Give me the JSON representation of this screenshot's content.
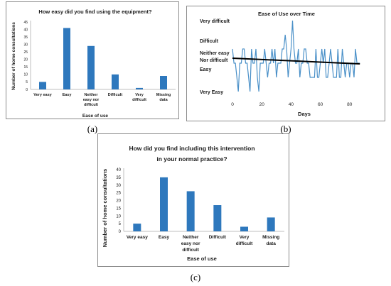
{
  "captions": {
    "a": "(a)",
    "b": "(b)",
    "c": "(c)"
  },
  "colors": {
    "bar": "#2e78bd",
    "series_line": "#4a90c8",
    "trend": "#000000",
    "axis": "#bfbfbf"
  },
  "chart_data": [
    {
      "type": "bar",
      "title": "How easy did you find using the equipment?",
      "xlabel": "Ease of use",
      "ylabel": "Number of home consultations",
      "categories": [
        "Very easy",
        "Easy",
        "Neither easy nor difficult",
        "Difficult",
        "Very difficult",
        "Missing data"
      ],
      "values": [
        5,
        41,
        29,
        10,
        1,
        9
      ],
      "ylim": [
        0,
        45
      ],
      "yticks": [
        "0",
        "5",
        "10",
        "15",
        "20",
        "25",
        "30",
        "35",
        "40",
        "45"
      ],
      "grid": false,
      "legend": "none"
    },
    {
      "type": "line",
      "title": "Ease of Use over Time",
      "xlabel": "Days",
      "ylabel": "",
      "xlim": [
        0,
        100
      ],
      "xticks": [
        "0",
        "20",
        "40",
        "60",
        "80"
      ],
      "ylim": [
        0,
        5
      ],
      "ytick_labels": [
        "Very Easy",
        "Easy",
        "Neither easy Nor difficult",
        "Difficult",
        "Very difficult"
      ],
      "series": [
        {
          "x": [
            0,
            1,
            2,
            3,
            4,
            5,
            6,
            7,
            8,
            9,
            10,
            11,
            12,
            13,
            14,
            15,
            16,
            17,
            18,
            19,
            20,
            21,
            22,
            23,
            24,
            25,
            26,
            27,
            28,
            29,
            30,
            31,
            32,
            33,
            34,
            35,
            36,
            37,
            38,
            39,
            40,
            41,
            42,
            43,
            44,
            45,
            46,
            47,
            48,
            49,
            50,
            51,
            52,
            53,
            54,
            55,
            56,
            57,
            58,
            59,
            60,
            61,
            62,
            63,
            64,
            65,
            66,
            67,
            68,
            69,
            70,
            71,
            72,
            73,
            74,
            75,
            76,
            77,
            78,
            79,
            80,
            81,
            82,
            83,
            84,
            85,
            86,
            87
          ],
          "y": [
            3,
            2,
            2,
            1,
            0,
            2,
            2,
            3,
            3,
            2,
            2,
            1,
            0,
            3,
            2,
            2,
            3,
            1,
            0,
            2,
            2,
            2,
            3,
            2,
            1,
            2,
            2,
            3,
            2,
            3,
            1,
            2,
            2,
            2,
            3,
            3,
            4,
            3,
            1,
            2,
            3,
            5,
            3,
            2,
            2,
            3,
            1,
            2,
            2,
            3,
            3,
            2,
            2,
            1,
            1,
            1,
            1,
            3,
            1,
            1,
            2,
            3,
            2,
            3,
            1,
            1,
            2,
            3,
            2,
            1,
            1,
            1,
            3,
            1,
            1,
            3,
            2,
            1,
            2,
            2,
            1,
            2,
            2,
            1,
            3,
            2,
            2,
            2
          ]
        }
      ],
      "trend": {
        "x": [
          0,
          87
        ],
        "y": [
          2.35,
          1.95
        ]
      },
      "grid": false,
      "legend": "none"
    },
    {
      "type": "bar",
      "title": "How did you find including this intervention in your normal practice?",
      "title_lines": [
        "How did you find including this intervention",
        "in your normal practice?"
      ],
      "xlabel": "Ease of use",
      "ylabel": "Number of home consultations",
      "categories": [
        "Very easy",
        "Easy",
        "Neither easy nor difficult",
        "Difficult",
        "Very difficult",
        "Missing data"
      ],
      "category_lines": [
        [
          "Very easy"
        ],
        [
          "Easy"
        ],
        [
          "Neither",
          "easy nor",
          "difficult"
        ],
        [
          "Difficult"
        ],
        [
          "Very",
          "difficult"
        ],
        [
          "Missing",
          "data"
        ]
      ],
      "values": [
        5,
        35,
        26,
        17,
        3,
        9
      ],
      "ylim": [
        0,
        40
      ],
      "yticks": [
        "0",
        "5",
        "10",
        "15",
        "20",
        "25",
        "30",
        "35",
        "40"
      ],
      "grid": false,
      "legend": "none"
    }
  ],
  "panel_a_category_lines": [
    [
      "Very easy"
    ],
    [
      "Easy"
    ],
    [
      "Neither",
      "easy nor",
      "difficult"
    ],
    [
      "Difficult"
    ],
    [
      "Very",
      "difficult"
    ],
    [
      "Missing",
      "data"
    ]
  ]
}
